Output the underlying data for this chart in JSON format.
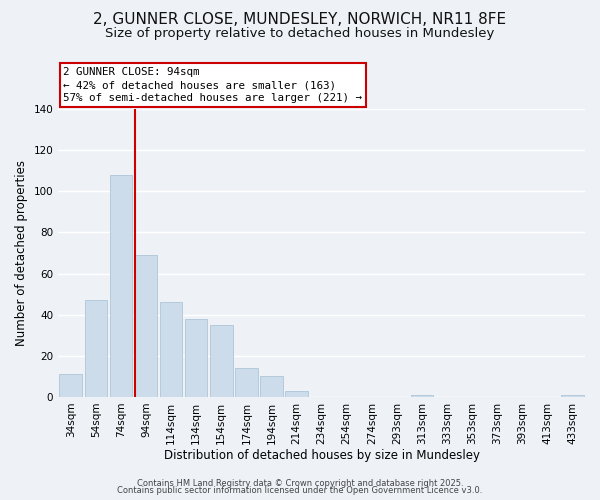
{
  "title": "2, GUNNER CLOSE, MUNDESLEY, NORWICH, NR11 8FE",
  "subtitle": "Size of property relative to detached houses in Mundesley",
  "xlabel": "Distribution of detached houses by size in Mundesley",
  "ylabel": "Number of detached properties",
  "bar_color": "#cddceb",
  "bar_edge_color": "#aec6d8",
  "categories": [
    "34sqm",
    "54sqm",
    "74sqm",
    "94sqm",
    "114sqm",
    "134sqm",
    "154sqm",
    "174sqm",
    "194sqm",
    "214sqm",
    "234sqm",
    "254sqm",
    "274sqm",
    "293sqm",
    "313sqm",
    "333sqm",
    "353sqm",
    "373sqm",
    "393sqm",
    "413sqm",
    "433sqm"
  ],
  "values": [
    11,
    47,
    108,
    69,
    46,
    38,
    35,
    14,
    10,
    3,
    0,
    0,
    0,
    0,
    1,
    0,
    0,
    0,
    0,
    0,
    1
  ],
  "ylim": [
    0,
    140
  ],
  "yticks": [
    0,
    20,
    40,
    60,
    80,
    100,
    120,
    140
  ],
  "vline_index": 3,
  "vline_color": "#cc0000",
  "annotation_title": "2 GUNNER CLOSE: 94sqm",
  "annotation_line1": "← 42% of detached houses are smaller (163)",
  "annotation_line2": "57% of semi-detached houses are larger (221) →",
  "annotation_box_color": "#ffffff",
  "annotation_box_edge": "#cc0000",
  "footer1": "Contains HM Land Registry data © Crown copyright and database right 2025.",
  "footer2": "Contains public sector information licensed under the Open Government Licence v3.0.",
  "background_color": "#eef2f7",
  "plot_background": "#eef2f7",
  "grid_color": "#ffffff",
  "title_fontsize": 11,
  "subtitle_fontsize": 9.5,
  "axis_label_fontsize": 8.5,
  "tick_fontsize": 7.5,
  "footer_fontsize": 6.0
}
